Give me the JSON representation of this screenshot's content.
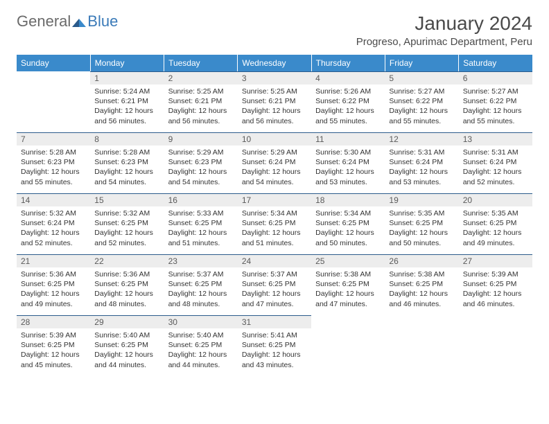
{
  "logo": {
    "text1": "General",
    "text2": "Blue"
  },
  "title": "January 2024",
  "location": "Progreso, Apurimac Department, Peru",
  "colors": {
    "header_bg": "#3a8acb",
    "header_text": "#ffffff",
    "daynum_bg": "#ededed",
    "daynum_border": "#2a5a8a",
    "body_text": "#333333",
    "logo_gray": "#6a6a6a",
    "logo_blue": "#3a7ab8"
  },
  "typography": {
    "month_title_pt": 28,
    "location_pt": 15,
    "weekday_pt": 12,
    "daynum_pt": 12,
    "cell_pt": 10.5
  },
  "weekdays": [
    "Sunday",
    "Monday",
    "Tuesday",
    "Wednesday",
    "Thursday",
    "Friday",
    "Saturday"
  ],
  "grid": [
    [
      null,
      {
        "n": "1",
        "sr": "5:24 AM",
        "ss": "6:21 PM",
        "dl": "12 hours and 56 minutes."
      },
      {
        "n": "2",
        "sr": "5:25 AM",
        "ss": "6:21 PM",
        "dl": "12 hours and 56 minutes."
      },
      {
        "n": "3",
        "sr": "5:25 AM",
        "ss": "6:21 PM",
        "dl": "12 hours and 56 minutes."
      },
      {
        "n": "4",
        "sr": "5:26 AM",
        "ss": "6:22 PM",
        "dl": "12 hours and 55 minutes."
      },
      {
        "n": "5",
        "sr": "5:27 AM",
        "ss": "6:22 PM",
        "dl": "12 hours and 55 minutes."
      },
      {
        "n": "6",
        "sr": "5:27 AM",
        "ss": "6:22 PM",
        "dl": "12 hours and 55 minutes."
      }
    ],
    [
      {
        "n": "7",
        "sr": "5:28 AM",
        "ss": "6:23 PM",
        "dl": "12 hours and 55 minutes."
      },
      {
        "n": "8",
        "sr": "5:28 AM",
        "ss": "6:23 PM",
        "dl": "12 hours and 54 minutes."
      },
      {
        "n": "9",
        "sr": "5:29 AM",
        "ss": "6:23 PM",
        "dl": "12 hours and 54 minutes."
      },
      {
        "n": "10",
        "sr": "5:29 AM",
        "ss": "6:24 PM",
        "dl": "12 hours and 54 minutes."
      },
      {
        "n": "11",
        "sr": "5:30 AM",
        "ss": "6:24 PM",
        "dl": "12 hours and 53 minutes."
      },
      {
        "n": "12",
        "sr": "5:31 AM",
        "ss": "6:24 PM",
        "dl": "12 hours and 53 minutes."
      },
      {
        "n": "13",
        "sr": "5:31 AM",
        "ss": "6:24 PM",
        "dl": "12 hours and 52 minutes."
      }
    ],
    [
      {
        "n": "14",
        "sr": "5:32 AM",
        "ss": "6:24 PM",
        "dl": "12 hours and 52 minutes."
      },
      {
        "n": "15",
        "sr": "5:32 AM",
        "ss": "6:25 PM",
        "dl": "12 hours and 52 minutes."
      },
      {
        "n": "16",
        "sr": "5:33 AM",
        "ss": "6:25 PM",
        "dl": "12 hours and 51 minutes."
      },
      {
        "n": "17",
        "sr": "5:34 AM",
        "ss": "6:25 PM",
        "dl": "12 hours and 51 minutes."
      },
      {
        "n": "18",
        "sr": "5:34 AM",
        "ss": "6:25 PM",
        "dl": "12 hours and 50 minutes."
      },
      {
        "n": "19",
        "sr": "5:35 AM",
        "ss": "6:25 PM",
        "dl": "12 hours and 50 minutes."
      },
      {
        "n": "20",
        "sr": "5:35 AM",
        "ss": "6:25 PM",
        "dl": "12 hours and 49 minutes."
      }
    ],
    [
      {
        "n": "21",
        "sr": "5:36 AM",
        "ss": "6:25 PM",
        "dl": "12 hours and 49 minutes."
      },
      {
        "n": "22",
        "sr": "5:36 AM",
        "ss": "6:25 PM",
        "dl": "12 hours and 48 minutes."
      },
      {
        "n": "23",
        "sr": "5:37 AM",
        "ss": "6:25 PM",
        "dl": "12 hours and 48 minutes."
      },
      {
        "n": "24",
        "sr": "5:37 AM",
        "ss": "6:25 PM",
        "dl": "12 hours and 47 minutes."
      },
      {
        "n": "25",
        "sr": "5:38 AM",
        "ss": "6:25 PM",
        "dl": "12 hours and 47 minutes."
      },
      {
        "n": "26",
        "sr": "5:38 AM",
        "ss": "6:25 PM",
        "dl": "12 hours and 46 minutes."
      },
      {
        "n": "27",
        "sr": "5:39 AM",
        "ss": "6:25 PM",
        "dl": "12 hours and 46 minutes."
      }
    ],
    [
      {
        "n": "28",
        "sr": "5:39 AM",
        "ss": "6:25 PM",
        "dl": "12 hours and 45 minutes."
      },
      {
        "n": "29",
        "sr": "5:40 AM",
        "ss": "6:25 PM",
        "dl": "12 hours and 44 minutes."
      },
      {
        "n": "30",
        "sr": "5:40 AM",
        "ss": "6:25 PM",
        "dl": "12 hours and 44 minutes."
      },
      {
        "n": "31",
        "sr": "5:41 AM",
        "ss": "6:25 PM",
        "dl": "12 hours and 43 minutes."
      },
      null,
      null,
      null
    ]
  ],
  "labels": {
    "sunrise": "Sunrise:",
    "sunset": "Sunset:",
    "daylight": "Daylight:"
  }
}
